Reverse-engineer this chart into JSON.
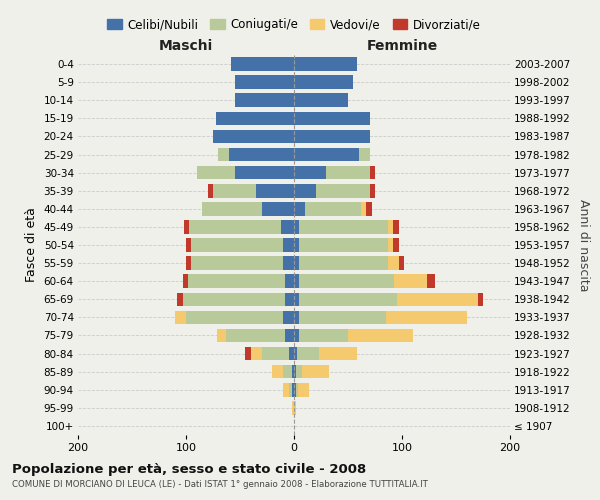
{
  "age_groups": [
    "100+",
    "95-99",
    "90-94",
    "85-89",
    "80-84",
    "75-79",
    "70-74",
    "65-69",
    "60-64",
    "55-59",
    "50-54",
    "45-49",
    "40-44",
    "35-39",
    "30-34",
    "25-29",
    "20-24",
    "15-19",
    "10-14",
    "5-9",
    "0-4"
  ],
  "birth_years": [
    "≤ 1907",
    "1908-1912",
    "1913-1917",
    "1918-1922",
    "1923-1927",
    "1928-1932",
    "1933-1937",
    "1938-1942",
    "1943-1947",
    "1948-1952",
    "1953-1957",
    "1958-1962",
    "1963-1967",
    "1968-1972",
    "1973-1977",
    "1978-1982",
    "1983-1987",
    "1988-1992",
    "1993-1997",
    "1998-2002",
    "2003-2007"
  ],
  "maschi": {
    "celibi": [
      0,
      0,
      2,
      2,
      5,
      8,
      10,
      8,
      8,
      10,
      10,
      12,
      30,
      35,
      55,
      60,
      75,
      72,
      55,
      55,
      58
    ],
    "coniugati": [
      0,
      0,
      3,
      8,
      25,
      55,
      90,
      95,
      90,
      85,
      85,
      85,
      55,
      40,
      35,
      10,
      0,
      0,
      0,
      0,
      0
    ],
    "vedovi": [
      0,
      2,
      5,
      10,
      10,
      8,
      10,
      0,
      0,
      0,
      0,
      0,
      0,
      0,
      0,
      0,
      0,
      0,
      0,
      0,
      0
    ],
    "divorziati": [
      0,
      0,
      0,
      0,
      5,
      0,
      0,
      5,
      5,
      5,
      5,
      5,
      0,
      5,
      0,
      0,
      0,
      0,
      0,
      0,
      0
    ]
  },
  "femmine": {
    "nubili": [
      0,
      0,
      2,
      2,
      3,
      5,
      5,
      5,
      5,
      5,
      5,
      5,
      10,
      20,
      30,
      60,
      70,
      70,
      50,
      55,
      58
    ],
    "coniugate": [
      0,
      0,
      2,
      5,
      20,
      45,
      80,
      90,
      88,
      82,
      82,
      82,
      52,
      50,
      40,
      10,
      0,
      0,
      0,
      0,
      0
    ],
    "vedove": [
      0,
      2,
      10,
      25,
      35,
      60,
      75,
      75,
      30,
      10,
      5,
      5,
      5,
      0,
      0,
      0,
      0,
      0,
      0,
      0,
      0
    ],
    "divorziate": [
      0,
      0,
      0,
      0,
      0,
      0,
      0,
      5,
      8,
      5,
      5,
      5,
      5,
      5,
      5,
      0,
      0,
      0,
      0,
      0,
      0
    ]
  },
  "colors": {
    "celibi": "#4472a8",
    "coniugati": "#b8c99a",
    "vedovi": "#f5c96e",
    "divorziati": "#c0392b"
  },
  "xlim": 200,
  "title": "Popolazione per età, sesso e stato civile - 2008",
  "subtitle": "COMUNE DI MORCIANO DI LEUCA (LE) - Dati ISTAT 1° gennaio 2008 - Elaborazione TUTTITALIA.IT",
  "ylabel_left": "Fasce di età",
  "ylabel_right": "Anni di nascita",
  "legend_labels": [
    "Celibi/Nubili",
    "Coniugati/e",
    "Vedovi/e",
    "Divorziati/e"
  ],
  "maschi_label": "Maschi",
  "femmine_label": "Femmine",
  "bg_color": "#f0f0eb"
}
